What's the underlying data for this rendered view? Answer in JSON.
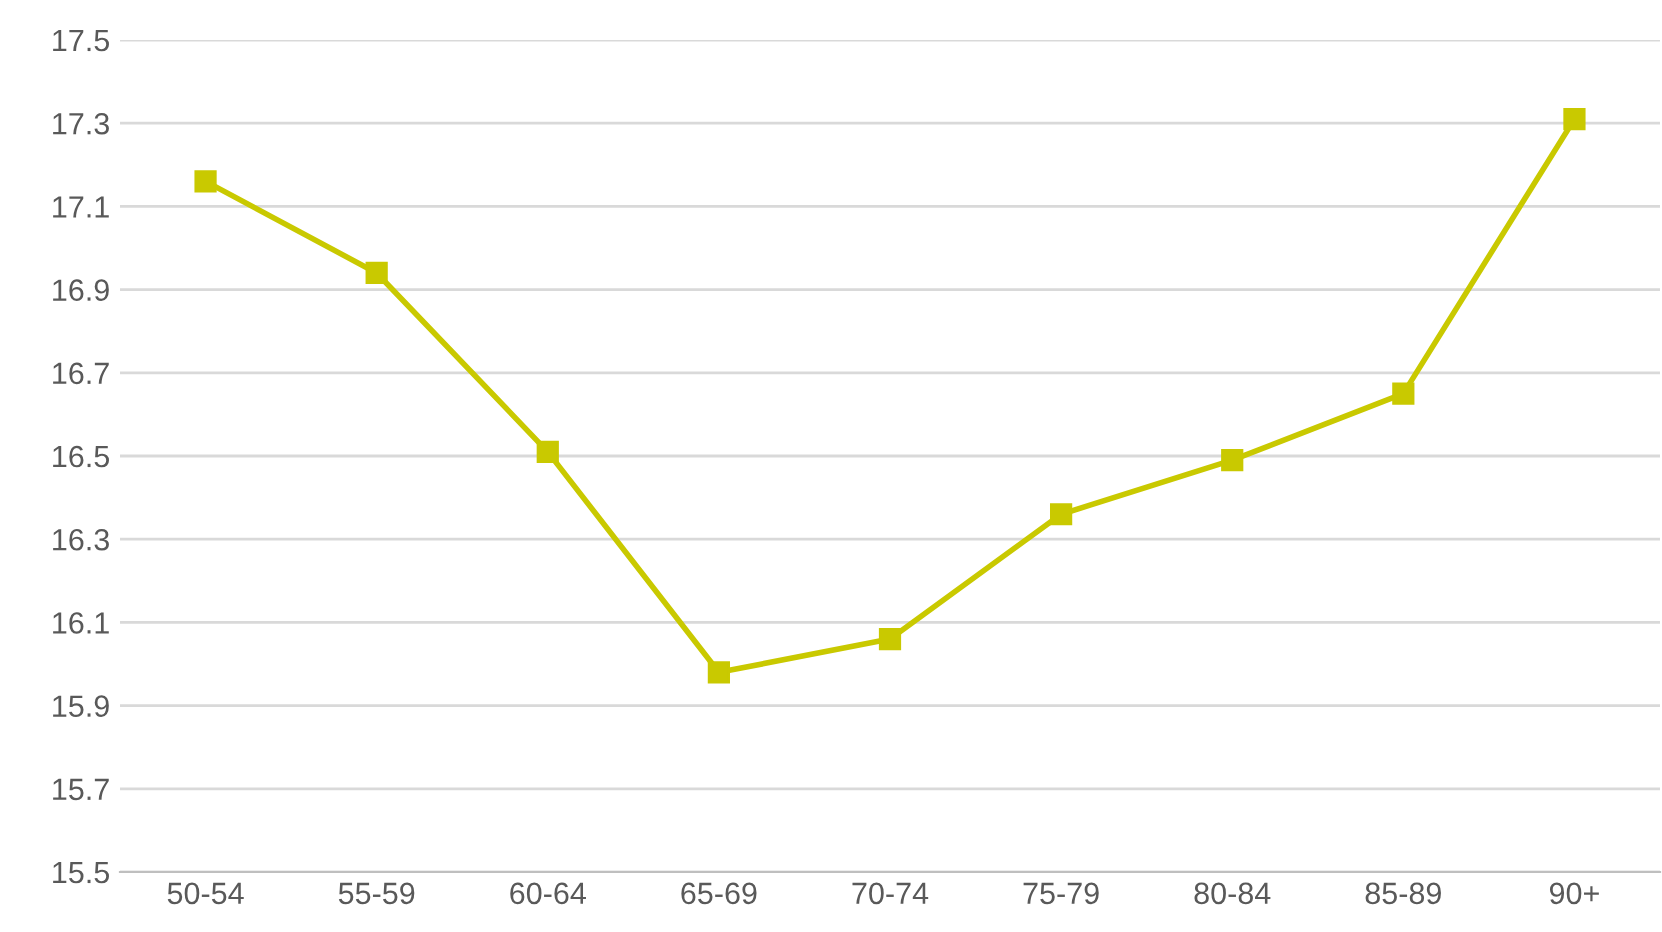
{
  "chart_data": {
    "type": "line",
    "categories": [
      "50-54",
      "55-59",
      "60-64",
      "65-69",
      "70-74",
      "75-79",
      "80-84",
      "85-89",
      "90+"
    ],
    "series": [
      {
        "color": "#c9c900",
        "values": [
          17.16,
          16.94,
          16.51,
          15.98,
          16.06,
          16.36,
          16.49,
          16.65,
          17.31
        ]
      }
    ],
    "ylim": [
      15.5,
      17.5
    ],
    "yticks": [
      15.5,
      15.7,
      15.9,
      16.1,
      16.3,
      16.5,
      16.7,
      16.9,
      17.1,
      17.3,
      17.5
    ],
    "grid": "y",
    "marker": "square",
    "line_style": "solid"
  }
}
